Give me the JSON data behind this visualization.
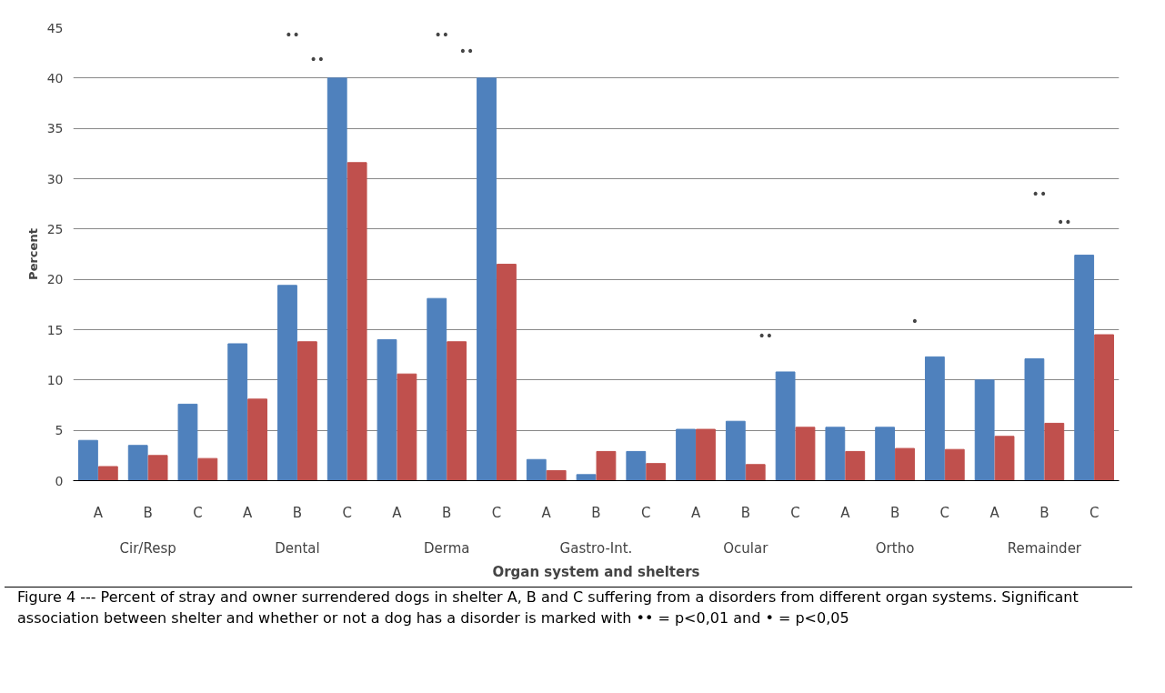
{
  "chart_data": {
    "type": "bar",
    "ylabel": "Percent",
    "xlabel": "Organ system and shelters",
    "categories": [
      "A",
      "B",
      "C",
      "A",
      "B",
      "C",
      "A",
      "B",
      "C",
      "A",
      "B",
      "C",
      "A",
      "B",
      "C",
      "A",
      "B",
      "C",
      "A",
      "B",
      "C"
    ],
    "series": [
      {
        "color": "#4f81bd",
        "values": [
          4.0,
          3.5,
          7.6,
          13.6,
          19.4,
          40.0,
          14.0,
          18.1,
          40.0,
          2.1,
          0.6,
          2.9,
          5.1,
          5.9,
          10.8,
          5.3,
          5.3,
          12.3,
          10.0,
          12.1,
          22.4
        ]
      },
      {
        "color": "#c0504d",
        "values": [
          1.4,
          2.5,
          2.2,
          8.1,
          13.8,
          31.6,
          10.6,
          13.8,
          21.5,
          1.0,
          2.9,
          1.7,
          5.1,
          1.6,
          5.3,
          2.9,
          3.2,
          3.1,
          4.4,
          5.7,
          14.5
        ]
      }
    ],
    "ylim": [
      0,
      45
    ],
    "yticks": [
      0,
      5,
      10,
      15,
      20,
      25,
      30,
      35,
      40,
      45
    ],
    "grid": "y",
    "annotations": [
      "Cir/Resp",
      "Dental",
      "Derma",
      "Gastro-Int.",
      "Ocular",
      "Ortho",
      "Remainder",
      "••",
      "••",
      "••",
      "••",
      "••",
      "•",
      "••",
      "••",
      "Figure 4 --- Percent of stray and owner surrendered dogs in shelter A, B and C suffering from a disorders from different organ systems. Significant association between shelter and whether or not a dog has a disorder is marked with •• = p<0,01 and • = p<0,05"
    ]
  }
}
